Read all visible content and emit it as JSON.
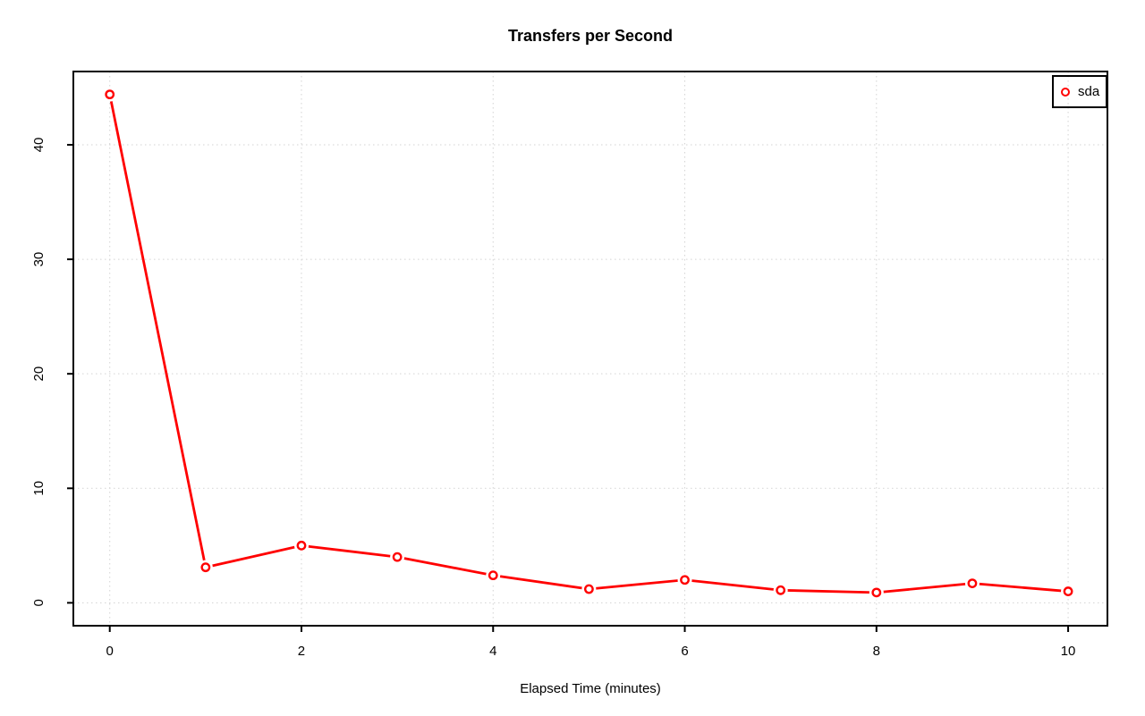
{
  "title": "Transfers per Second",
  "x_axis_label": "Elapsed Time (minutes)",
  "legend": {
    "position": "top-right",
    "items": [
      {
        "label": "sda",
        "marker": "open-circle",
        "color": "#ff0000"
      }
    ]
  },
  "colors": {
    "series": "#ff0000",
    "axis": "#000000",
    "grid": "#d3d3d3",
    "background": "#ffffff",
    "marker_fill": "#ffffff"
  },
  "chart_data": {
    "type": "line",
    "title": "Transfers per Second",
    "xlabel": "Elapsed Time (minutes)",
    "ylabel": "",
    "x": [
      0,
      1,
      2,
      3,
      4,
      5,
      6,
      7,
      8,
      9,
      10
    ],
    "series": [
      {
        "name": "sda",
        "color": "#ff0000",
        "marker": "open-circle",
        "values": [
          44.4,
          3.1,
          5.0,
          4.0,
          2.4,
          1.2,
          2.0,
          1.1,
          0.9,
          1.7,
          1.0
        ]
      }
    ],
    "x_ticks": [
      0,
      2,
      4,
      6,
      8,
      10
    ],
    "y_ticks": [
      0,
      10,
      20,
      30,
      40
    ],
    "xlim": [
      -0.38,
      10.41
    ],
    "ylim": [
      -2.0,
      46.4
    ],
    "grid": true,
    "grid_style": "dotted",
    "legend_position": "top-right"
  }
}
